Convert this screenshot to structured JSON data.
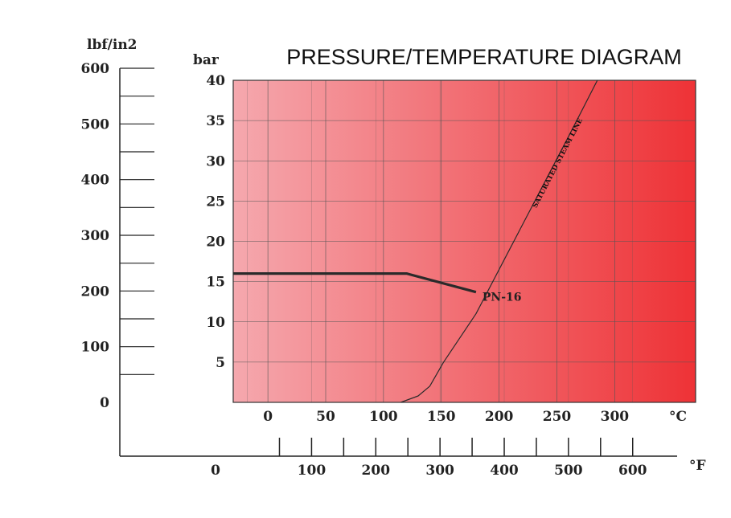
{
  "chart_data": {
    "type": "line",
    "title": "PRESSURE/TEMPERATURE DIAGRAM",
    "ylabel": "bar",
    "ylim": [
      0,
      40
    ],
    "yticks": [
      5,
      10,
      15,
      20,
      25,
      30,
      35,
      40
    ],
    "xlim_c": [
      -30,
      370
    ],
    "xticks_c": [
      0,
      50,
      100,
      150,
      200,
      250,
      300
    ],
    "xunit_c": "°C",
    "secondary_y": {
      "label": "lbf/in2",
      "ticks": [
        0,
        100,
        200,
        300,
        400,
        500,
        600
      ]
    },
    "secondary_x": {
      "unit": "°F",
      "ticks": [
        0,
        100,
        200,
        300,
        400,
        500,
        600
      ]
    },
    "series": [
      {
        "name": "PN-16",
        "color": "#2a2a2a",
        "x": [
          -30,
          120,
          180
        ],
        "y": [
          16,
          16,
          13.7
        ]
      },
      {
        "name": "SATURATED STEAM LINE",
        "color": "#2a2a2a",
        "x": [
          115,
          130,
          140,
          146,
          152,
          180,
          220,
          260,
          285
        ],
        "y": [
          0,
          0.8,
          2,
          3.5,
          5,
          11,
          22,
          33,
          40
        ]
      }
    ],
    "colors": {
      "gradient_start": "#f5a8ae",
      "gradient_end": "#ee3236",
      "grid": "#555555"
    }
  }
}
